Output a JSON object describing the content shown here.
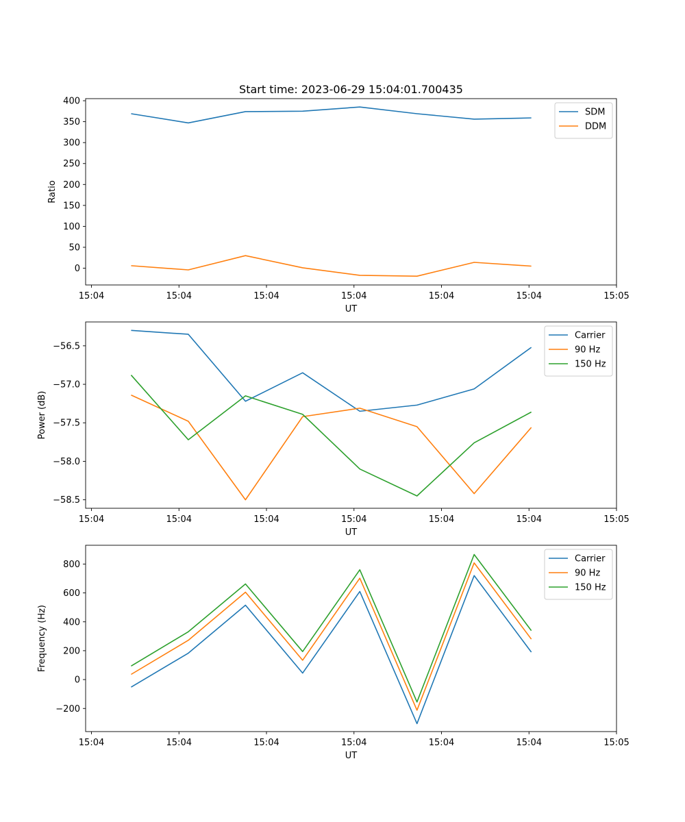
{
  "figure": {
    "title": "Start time: 2023-06-29 15:04:01.700435"
  },
  "chart_data": [
    {
      "type": "line",
      "xlabel": "UT",
      "ylabel": "Ratio",
      "x_unit": "seconds since 15:04:00",
      "x": [
        3.4,
        8.3,
        13.2,
        18.1,
        23.0,
        27.9,
        32.8,
        37.7
      ],
      "xlim": [
        -0.5,
        45.0
      ],
      "xticks": [
        0,
        7.5,
        15,
        22.5,
        30,
        37.5,
        45
      ],
      "xticklabels": [
        "15:04",
        "15:04",
        "15:04",
        "15:04",
        "15:04",
        "15:04",
        "15:05"
      ],
      "ylim": [
        -40,
        405
      ],
      "yticks": [
        0,
        50,
        100,
        150,
        200,
        250,
        300,
        350,
        400
      ],
      "yticklabels": [
        "0",
        "50",
        "100",
        "150",
        "200",
        "250",
        "300",
        "350",
        "400"
      ],
      "legend": "upper right",
      "grid": false,
      "series": [
        {
          "name": "SDM",
          "color": "#1f77b4",
          "values": [
            369,
            347,
            374,
            375,
            385,
            369,
            356,
            359
          ]
        },
        {
          "name": "DDM",
          "color": "#ff7f0e",
          "values": [
            6,
            -4,
            30,
            1,
            -17,
            -19,
            14,
            5
          ]
        }
      ]
    },
    {
      "type": "line",
      "xlabel": "UT",
      "ylabel": "Power (dB)",
      "x": [
        3.4,
        8.3,
        13.2,
        18.1,
        23.0,
        27.9,
        32.8,
        37.7
      ],
      "xlim": [
        -0.5,
        45.0
      ],
      "xticks": [
        0,
        7.5,
        15,
        22.5,
        30,
        37.5,
        45
      ],
      "xticklabels": [
        "15:04",
        "15:04",
        "15:04",
        "15:04",
        "15:04",
        "15:04",
        "15:05"
      ],
      "ylim": [
        -58.61,
        -56.19
      ],
      "yticks": [
        -58.5,
        -58.0,
        -57.5,
        -57.0,
        -56.5
      ],
      "yticklabels": [
        "−58.5",
        "−58.0",
        "−57.5",
        "−57.0",
        "−56.5"
      ],
      "legend": "upper right",
      "grid": false,
      "series": [
        {
          "name": "Carrier",
          "color": "#1f77b4",
          "values": [
            -56.3,
            -56.35,
            -57.22,
            -56.85,
            -57.35,
            -57.27,
            -57.06,
            -56.52
          ]
        },
        {
          "name": "90 Hz",
          "color": "#ff7f0e",
          "values": [
            -57.14,
            -57.48,
            -58.5,
            -57.42,
            -57.31,
            -57.55,
            -58.42,
            -57.56
          ]
        },
        {
          "name": "150 Hz",
          "color": "#2ca02c",
          "values": [
            -56.88,
            -57.72,
            -57.15,
            -57.39,
            -58.1,
            -58.45,
            -57.76,
            -57.36
          ]
        }
      ]
    },
    {
      "type": "line",
      "xlabel": "UT",
      "ylabel": "Frequency (Hz)",
      "x": [
        3.4,
        8.3,
        13.2,
        18.1,
        23.0,
        27.9,
        32.8,
        37.7
      ],
      "xlim": [
        -0.5,
        45.0
      ],
      "xticks": [
        0,
        7.5,
        15,
        22.5,
        30,
        37.5,
        45
      ],
      "xticklabels": [
        "15:04",
        "15:04",
        "15:04",
        "15:04",
        "15:04",
        "15:04",
        "15:05"
      ],
      "ylim": [
        -360,
        930
      ],
      "yticks": [
        -200,
        0,
        200,
        400,
        600,
        800
      ],
      "yticklabels": [
        "−200",
        "0",
        "200",
        "400",
        "600",
        "800"
      ],
      "legend": "upper right",
      "grid": false,
      "series": [
        {
          "name": "Carrier",
          "color": "#1f77b4",
          "values": [
            -52,
            183,
            515,
            45,
            610,
            -305,
            720,
            190
          ]
        },
        {
          "name": "90 Hz",
          "color": "#ff7f0e",
          "values": [
            36,
            272,
            605,
            134,
            702,
            -212,
            808,
            280
          ]
        },
        {
          "name": "150 Hz",
          "color": "#2ca02c",
          "values": [
            94,
            331,
            662,
            194,
            760,
            -155,
            866,
            339
          ]
        }
      ]
    }
  ]
}
